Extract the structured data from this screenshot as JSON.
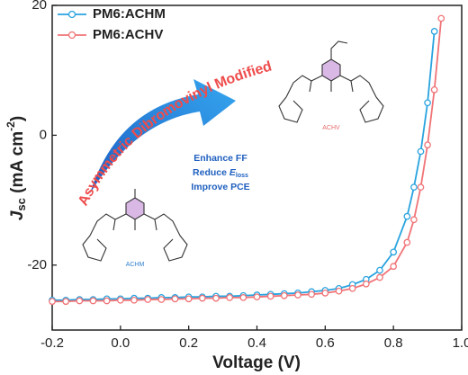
{
  "chart_data": {
    "type": "line",
    "x": [
      -0.2,
      -0.16,
      -0.12,
      -0.08,
      -0.04,
      0,
      0.04,
      0.08,
      0.12,
      0.16,
      0.2,
      0.24,
      0.28,
      0.32,
      0.36,
      0.4,
      0.44,
      0.48,
      0.52,
      0.56,
      0.6,
      0.64,
      0.68,
      0.72,
      0.76,
      0.8,
      0.84,
      0.86,
      0.88,
      0.9,
      0.92,
      0.94
    ],
    "series": [
      {
        "name": "PM6:ACHM",
        "color": "#29a3df",
        "values": [
          -25.4,
          -25.4,
          -25.3,
          -25.3,
          -25.2,
          -25.2,
          -25.1,
          -25.1,
          -25.0,
          -25.0,
          -24.9,
          -24.9,
          -24.8,
          -24.8,
          -24.7,
          -24.6,
          -24.5,
          -24.4,
          -24.3,
          -24.1,
          -23.9,
          -23.6,
          -23.0,
          -22.2,
          -20.8,
          -18.0,
          -12.5,
          -8,
          -2.5,
          5,
          16,
          null
        ]
      },
      {
        "name": "PM6:ACHV",
        "color": "#f07377",
        "values": [
          -25.6,
          -25.6,
          -25.5,
          -25.5,
          -25.5,
          -25.4,
          -25.4,
          -25.3,
          -25.3,
          -25.2,
          -25.2,
          -25.1,
          -25.1,
          -25.0,
          -25.0,
          -24.9,
          -24.8,
          -24.7,
          -24.6,
          -24.5,
          -24.3,
          -24.0,
          -23.6,
          -22.9,
          -21.9,
          -20.2,
          -16.5,
          -13,
          -8,
          -1.5,
          7,
          18
        ]
      }
    ],
    "xlabel": "Voltage (V)",
    "ylabel": {
      "main": "J",
      "sub": "sc",
      "unit": " (mA cm",
      "sup": "-2",
      "close": ")"
    },
    "xlim": [
      -0.2,
      1.0
    ],
    "ylim": [
      -30,
      20
    ],
    "xticks": [
      -0.2,
      {
        "value": 0,
        "label": "0.0"
      },
      0.2,
      0.4,
      0.6,
      0.8,
      {
        "value": 1,
        "label": "1.0"
      }
    ],
    "yticks": [
      -20,
      0,
      20
    ],
    "annotations": {
      "arrow_text": "Asymmetric Dibromovinyl Modified",
      "effects": {
        "line1": "Enhance FF",
        "line2_pre": "Reduce ",
        "line2_var": "E",
        "line2_sub": "loss",
        "line3": "Improve PCE"
      },
      "molecule_left": "ACHM",
      "molecule_right": "ACHV"
    }
  }
}
